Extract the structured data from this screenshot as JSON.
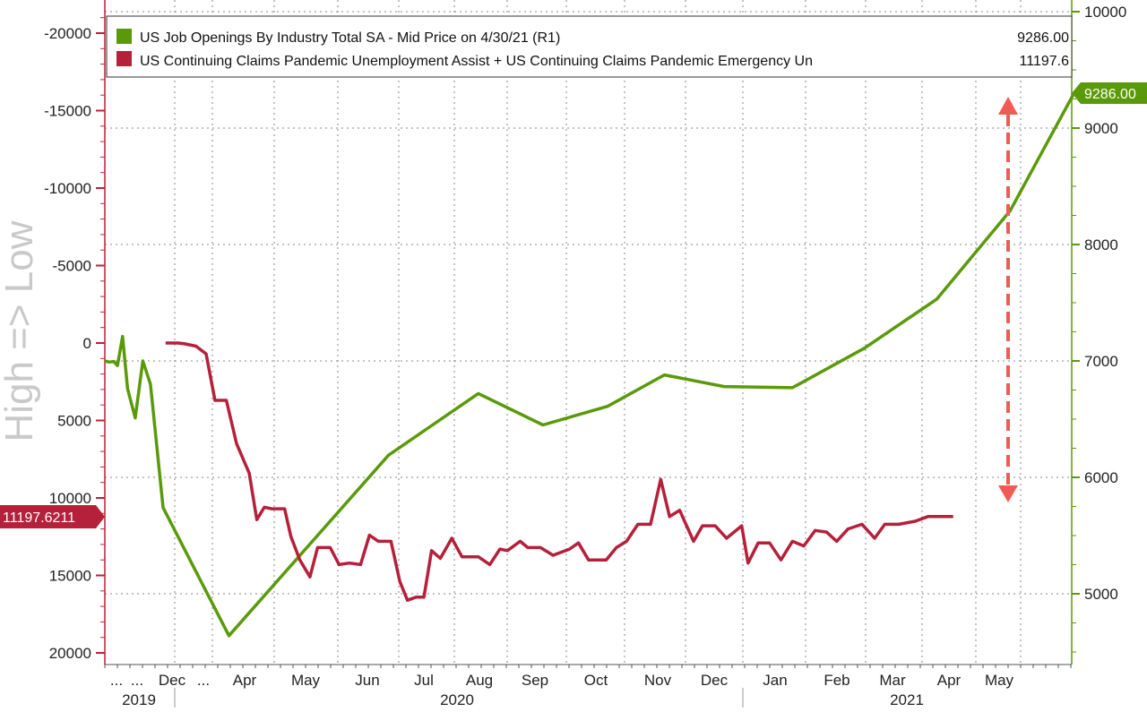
{
  "chart_data": {
    "type": "line",
    "ylabel_left": "High => Low",
    "left_axis": {
      "inverted": true,
      "range": [
        -21500,
        20500
      ],
      "ticks": [
        "-20000",
        "-15000",
        "-10000",
        "-5000",
        "0",
        "5000",
        "10000",
        "15000",
        "20000"
      ]
    },
    "right_axis": {
      "range": [
        4450,
        10100
      ],
      "ticks": [
        "10000",
        "9000",
        "8000",
        "7000",
        "6000",
        "5000"
      ]
    },
    "x_tick_labels": [
      "...",
      "...",
      "Dec",
      "...",
      "Apr",
      "May",
      "Jun",
      "Jul",
      "Aug",
      "Sep",
      "Oct",
      "Nov",
      "Dec",
      "Jan",
      "Feb",
      "Mar",
      "Apr",
      "May"
    ],
    "x_year_labels": [
      "2019",
      "2020",
      "2021"
    ],
    "grid": true,
    "legend_position": "top",
    "series": [
      {
        "name": "US Job Openings By Industry Total SA - Mid Price on 4/30/21 (R1)",
        "legend_value": "9286.00",
        "last_value_label": "9286.00",
        "axis": "right",
        "color": "#5a9a0a",
        "points": [
          [
            0,
            7000
          ],
          [
            0.35,
            6990
          ],
          [
            0.7,
            6995
          ],
          [
            1.0,
            6960
          ],
          [
            1.4,
            7210
          ],
          [
            1.8,
            6760
          ],
          [
            2.4,
            6510
          ],
          [
            3.0,
            7000
          ],
          [
            3.6,
            6800
          ],
          [
            4.6,
            5740
          ],
          [
            9.8,
            4640
          ],
          [
            22.4,
            6190
          ],
          [
            29.5,
            6720
          ],
          [
            34.6,
            6450
          ],
          [
            39.7,
            6610
          ],
          [
            44.2,
            6880
          ],
          [
            48.9,
            6780
          ],
          [
            54.3,
            6770
          ],
          [
            60.0,
            7110
          ],
          [
            65.7,
            7530
          ],
          [
            71.5,
            8290
          ],
          [
            76.5,
            9290
          ]
        ]
      },
      {
        "name": "US Continuing Claims Pandemic Unemployment Assist + US Continuing Claims Pandemic Emergency Un",
        "legend_value": "11197.6",
        "last_value_label": "11197.6211",
        "axis": "left",
        "color": "#b5203b",
        "points": [
          [
            4.8,
            0
          ],
          [
            5.8,
            0
          ],
          [
            6.3,
            50
          ],
          [
            7.2,
            200
          ],
          [
            8.0,
            700
          ],
          [
            8.7,
            3700
          ],
          [
            9.6,
            3700
          ],
          [
            10.4,
            6500
          ],
          [
            11.4,
            8400
          ],
          [
            12.0,
            11400
          ],
          [
            12.6,
            10600
          ],
          [
            13.2,
            10700
          ],
          [
            14.2,
            10700
          ],
          [
            14.7,
            12500
          ],
          [
            15.4,
            14000
          ],
          [
            16.2,
            15100
          ],
          [
            16.8,
            13200
          ],
          [
            17.8,
            13200
          ],
          [
            18.5,
            14300
          ],
          [
            19.3,
            14200
          ],
          [
            20.2,
            14300
          ],
          [
            20.9,
            12400
          ],
          [
            21.6,
            12800
          ],
          [
            22.6,
            12800
          ],
          [
            23.3,
            15400
          ],
          [
            23.9,
            16600
          ],
          [
            24.6,
            16400
          ],
          [
            25.2,
            16400
          ],
          [
            25.8,
            13400
          ],
          [
            26.5,
            13900
          ],
          [
            27.4,
            12600
          ],
          [
            28.2,
            13800
          ],
          [
            29.5,
            13800
          ],
          [
            30.4,
            14300
          ],
          [
            31.2,
            13300
          ],
          [
            31.8,
            13400
          ],
          [
            32.8,
            12800
          ],
          [
            33.4,
            13200
          ],
          [
            34.4,
            13200
          ],
          [
            35.4,
            13700
          ],
          [
            36.7,
            13300
          ],
          [
            37.4,
            12900
          ],
          [
            38.2,
            14000
          ],
          [
            39.6,
            14000
          ],
          [
            40.4,
            13200
          ],
          [
            41.2,
            12800
          ],
          [
            42.1,
            11700
          ],
          [
            43.1,
            11700
          ],
          [
            43.9,
            8800
          ],
          [
            44.6,
            11200
          ],
          [
            45.4,
            10800
          ],
          [
            46.5,
            12800
          ],
          [
            47.2,
            11800
          ],
          [
            48.2,
            11800
          ],
          [
            49.1,
            12600
          ],
          [
            50.3,
            11800
          ],
          [
            50.8,
            14200
          ],
          [
            51.6,
            12900
          ],
          [
            52.5,
            12900
          ],
          [
            53.4,
            14000
          ],
          [
            54.3,
            12800
          ],
          [
            55.2,
            13100
          ],
          [
            56.1,
            12100
          ],
          [
            57.0,
            12200
          ],
          [
            57.8,
            12800
          ],
          [
            58.7,
            12000
          ],
          [
            59.8,
            11700
          ],
          [
            60.8,
            12600
          ],
          [
            61.6,
            11700
          ],
          [
            62.7,
            11700
          ],
          [
            64.0,
            11500
          ],
          [
            65.0,
            11200
          ],
          [
            66.0,
            11200
          ],
          [
            67.0,
            11200
          ]
        ]
      }
    ]
  }
}
